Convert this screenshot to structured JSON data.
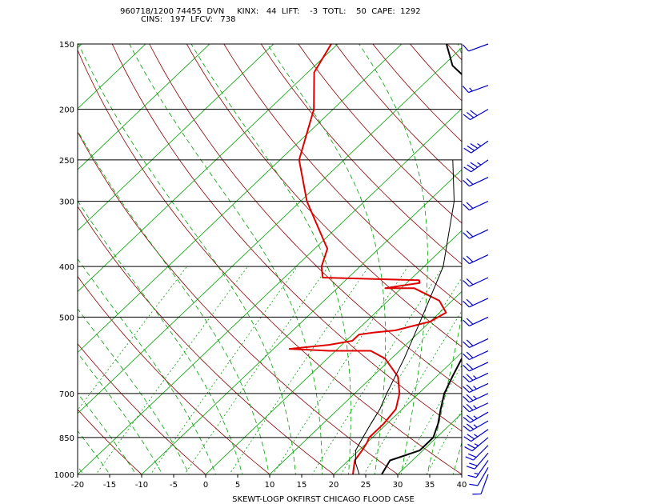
{
  "header": {
    "line1": "960718/1200 74455  DVN     KINX:   44  LIFT:    -3  TOTL:    50  CAPE:  1292",
    "line2": "CINS:   197  LFCV:   738"
  },
  "colors": {
    "temperature": "#e00000",
    "dewpoint": "#e00000",
    "environment": "#000000",
    "mixing_ratio": "#00a000",
    "dry_adiabat": "#8b0000",
    "moist_adiabat": "#00a000",
    "isotherm": "#00a000",
    "parcel": "#000000",
    "wind_barb": "#0000cc"
  },
  "chart_data": {
    "type": "line",
    "title": "SKEWT-LOGP OKFIRST CHICAGO FLOOD CASE",
    "xlabel": "",
    "ylabel": "",
    "xlim": [
      -20,
      40
    ],
    "ylim": [
      1000,
      150
    ],
    "y_scale": "log",
    "x_ticks": [
      "-20",
      "-15",
      "-10",
      "-5",
      "0",
      "5",
      "10",
      "15",
      "20",
      "25",
      "30",
      "35",
      "40"
    ],
    "y_ticks": [
      "150",
      "200",
      "250",
      "300",
      "400",
      "500",
      "700",
      "850",
      "1000"
    ],
    "series": [
      {
        "role": "environment",
        "points": [
          [
            1000,
            27.5
          ],
          [
            970,
            27.0
          ],
          [
            940,
            26.5
          ],
          [
            900,
            29.5
          ],
          [
            870,
            29.5
          ],
          [
            850,
            29.5
          ],
          [
            800,
            28.0
          ],
          [
            750,
            26.0
          ],
          [
            700,
            24.0
          ],
          [
            650,
            22.5
          ],
          [
            600,
            21.0
          ],
          [
            560,
            20.0
          ],
          [
            540,
            19.5
          ],
          [
            520,
            19.0
          ],
          [
            500,
            18.5
          ],
          [
            480,
            19.0
          ],
          [
            460,
            18.0
          ],
          [
            440,
            18.0
          ],
          [
            420,
            17.0
          ],
          [
            400,
            15.5
          ],
          [
            350,
            11.0
          ],
          [
            300,
            5.0
          ],
          [
            270,
            0.0
          ],
          [
            250,
            -4.5
          ],
          [
            220,
            -11.0
          ],
          [
            200,
            -15.5
          ],
          [
            180,
            -22.0
          ],
          [
            165,
            -28.5
          ],
          [
            150,
            -33.0
          ]
        ]
      },
      {
        "role": "dewpoint",
        "points": [
          [
            1000,
            23.0
          ],
          [
            970,
            22.0
          ],
          [
            940,
            21.0
          ],
          [
            900,
            20.5
          ],
          [
            870,
            20.0
          ],
          [
            850,
            19.5
          ],
          [
            800,
            19.5
          ],
          [
            750,
            19.0
          ],
          [
            700,
            17.0
          ],
          [
            650,
            14.0
          ],
          [
            600,
            9.0
          ],
          [
            580,
            5.5
          ],
          [
            580,
            -1.0
          ],
          [
            575,
            -7.5
          ],
          [
            565,
            -2.0
          ],
          [
            555,
            1.0
          ],
          [
            540,
            1.0
          ],
          [
            535,
            3.0
          ],
          [
            530,
            6.0
          ],
          [
            510,
            10.0
          ],
          [
            490,
            11.0
          ],
          [
            465,
            8.0
          ],
          [
            440,
            2.0
          ],
          [
            440,
            -2.5
          ],
          [
            430,
            2.0
          ],
          [
            425,
            1.5
          ],
          [
            420,
            -14.0
          ],
          [
            400,
            -16.0
          ],
          [
            370,
            -18.0
          ],
          [
            330,
            -24.0
          ],
          [
            300,
            -29.0
          ],
          [
            250,
            -37.0
          ],
          [
            200,
            -43.0
          ],
          [
            170,
            -49.0
          ],
          [
            150,
            -51.0
          ]
        ]
      },
      {
        "role": "parcel",
        "points": [
          [
            1000,
            24.0
          ],
          [
            950,
            21.5
          ],
          [
            900,
            19.5
          ],
          [
            850,
            18.5
          ],
          [
            800,
            17.5
          ],
          [
            750,
            16.5
          ],
          [
            700,
            15.0
          ],
          [
            600,
            12.0
          ],
          [
            500,
            8.0
          ],
          [
            400,
            3.0
          ],
          [
            300,
            -6.0
          ],
          [
            250,
            -13.0
          ]
        ]
      }
    ],
    "wind_barbs": [
      {
        "p": 1000,
        "speed": 10,
        "dir": 200
      },
      {
        "p": 970,
        "speed": 10,
        "dir": 210
      },
      {
        "p": 940,
        "speed": 15,
        "dir": 215
      },
      {
        "p": 910,
        "speed": 20,
        "dir": 220
      },
      {
        "p": 880,
        "speed": 20,
        "dir": 225
      },
      {
        "p": 850,
        "speed": 25,
        "dir": 230
      },
      {
        "p": 820,
        "speed": 25,
        "dir": 235
      },
      {
        "p": 790,
        "speed": 25,
        "dir": 240
      },
      {
        "p": 760,
        "speed": 25,
        "dir": 240
      },
      {
        "p": 730,
        "speed": 25,
        "dir": 245
      },
      {
        "p": 700,
        "speed": 25,
        "dir": 245
      },
      {
        "p": 670,
        "speed": 25,
        "dir": 245
      },
      {
        "p": 640,
        "speed": 25,
        "dir": 245
      },
      {
        "p": 610,
        "speed": 20,
        "dir": 245
      },
      {
        "p": 580,
        "speed": 20,
        "dir": 245
      },
      {
        "p": 550,
        "speed": 20,
        "dir": 245
      },
      {
        "p": 500,
        "speed": 20,
        "dir": 245
      },
      {
        "p": 460,
        "speed": 20,
        "dir": 245
      },
      {
        "p": 420,
        "speed": 20,
        "dir": 245
      },
      {
        "p": 380,
        "speed": 20,
        "dir": 245
      },
      {
        "p": 340,
        "speed": 20,
        "dir": 245
      },
      {
        "p": 300,
        "speed": 20,
        "dir": 245
      },
      {
        "p": 270,
        "speed": 20,
        "dir": 245
      },
      {
        "p": 250,
        "speed": 35,
        "dir": 235
      },
      {
        "p": 230,
        "speed": 35,
        "dir": 235
      },
      {
        "p": 200,
        "speed": 30,
        "dir": 240
      },
      {
        "p": 180,
        "speed": 15,
        "dir": 250
      },
      {
        "p": 150,
        "speed": 10,
        "dir": 250
      }
    ]
  }
}
